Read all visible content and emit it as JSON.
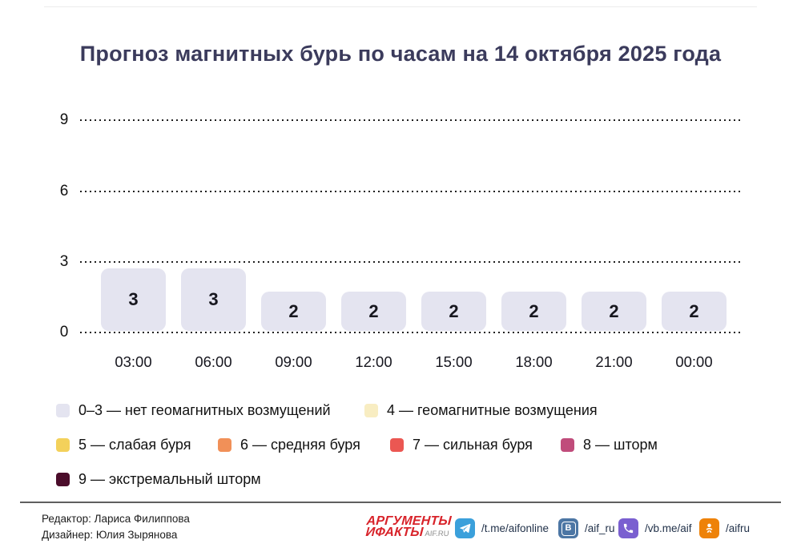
{
  "title": "Прогноз магнитных бурь по часам на 14 октября 2025 года",
  "chart_data": {
    "type": "bar",
    "categories": [
      "03:00",
      "06:00",
      "09:00",
      "12:00",
      "15:00",
      "18:00",
      "21:00",
      "00:00"
    ],
    "values": [
      3,
      3,
      2,
      2,
      2,
      2,
      2,
      2
    ],
    "title": "Прогноз магнитных бурь по часам на 14 октября 2025 года",
    "xlabel": "",
    "ylabel": "",
    "ylim": [
      0,
      9
    ],
    "yticks": [
      "9",
      "6",
      "3",
      "0"
    ],
    "grid": "horizontal-dotted",
    "legend_position": "bottom",
    "bar_color": "#e4e4f0",
    "bar_label_color": "#17171f"
  },
  "legend": {
    "items": [
      {
        "label": "0–3 — нет геомагнитных возмущений",
        "color": "#e4e4f0"
      },
      {
        "label": "4 — геомагнитные возмущения",
        "color": "#f8edc2"
      },
      {
        "label": "5 — слабая буря",
        "color": "#f3d15b"
      },
      {
        "label": "6 — средняя буря",
        "color": "#f19058"
      },
      {
        "label": "7 — сильная буря",
        "color": "#eb5752"
      },
      {
        "label": "8 — шторм",
        "color": "#c04c7b"
      },
      {
        "label": "9 — экстремальный шторм",
        "color": "#4b0d2b"
      }
    ]
  },
  "footer": {
    "editor": "Редактор: Лариса Филиппова",
    "designer": "Дизайнер: Юлия Зырянова",
    "logo": {
      "line1": "АРГУМЕНТЫ",
      "line2": "ИФАКТЫ",
      "domain": "AIF.RU",
      "color": "#d8232a"
    },
    "social": [
      {
        "name": "telegram",
        "icon": "telegram-plane-icon",
        "handle": "/t.me/aifonline",
        "color": "#3ba0db"
      },
      {
        "name": "vk",
        "icon": "vk-letter-icon",
        "glyph": "В",
        "handle": "/aif_ru",
        "color": "#4c76a4"
      },
      {
        "name": "viber",
        "icon": "phone-icon",
        "handle": "/vb.me/aif",
        "color": "#7a5fd0"
      },
      {
        "name": "odnoklassniki",
        "icon": "ok-person-icon",
        "handle": "/aifru",
        "color": "#ee8208"
      }
    ]
  }
}
